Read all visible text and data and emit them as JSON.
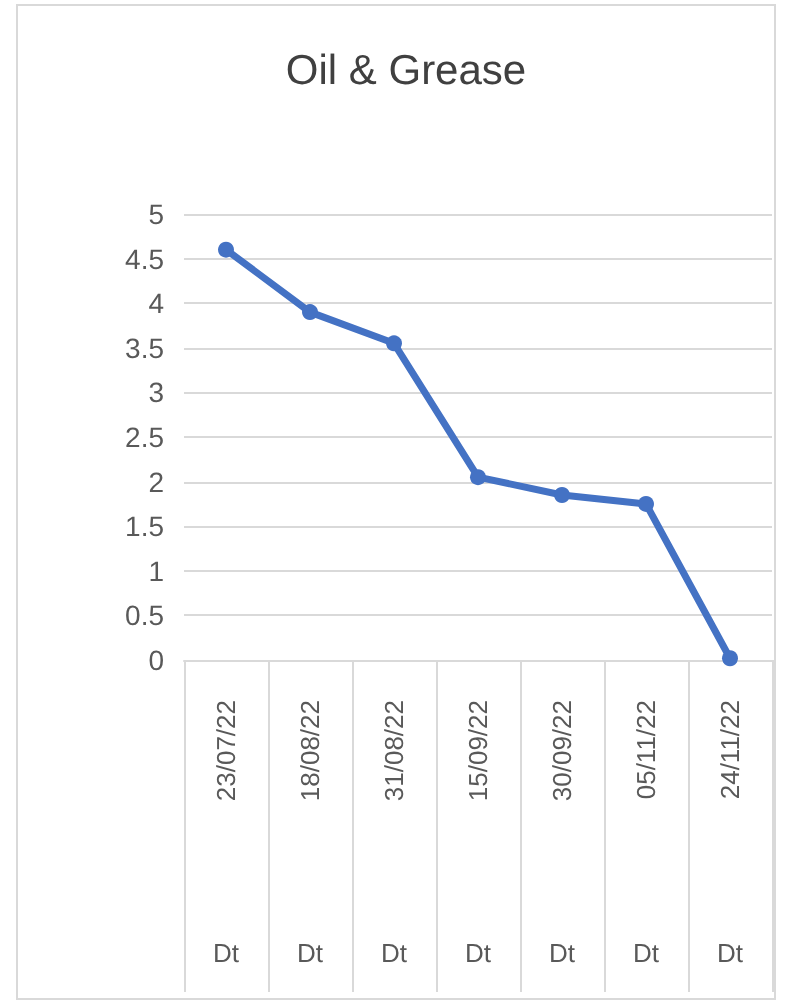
{
  "chart_data": {
    "type": "line",
    "title": "Oil & Grease",
    "categories": [
      "23/07/22",
      "18/08/22",
      "31/08/22",
      "15/09/22",
      "30/09/22",
      "05/11/22",
      "24/11/22"
    ],
    "series": [
      {
        "color": "#4472c4",
        "values": [
          4.6,
          3.9,
          3.55,
          2.05,
          1.85,
          1.75,
          0.02
        ]
      }
    ],
    "ylim": [
      0,
      5
    ],
    "yticks": [
      0,
      0.5,
      1,
      1.5,
      2,
      2.5,
      3,
      3.5,
      4,
      4.5,
      5
    ],
    "annotations": [
      "Dt",
      "Dt",
      "Dt",
      "Dt",
      "Dt",
      "Dt",
      "Dt"
    ],
    "grid": "y",
    "marker": "circle",
    "line_style": "solid"
  }
}
